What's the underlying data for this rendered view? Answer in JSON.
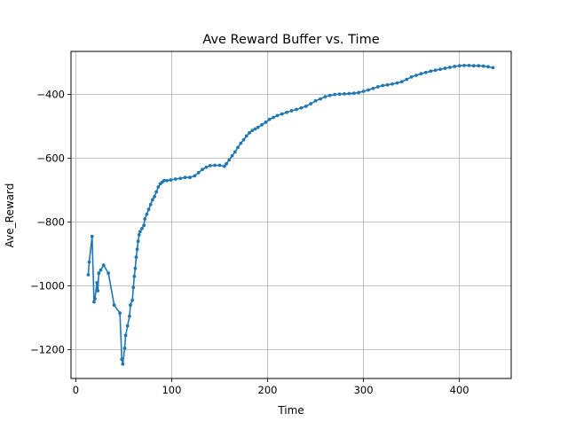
{
  "chart_data": {
    "type": "line",
    "title": "Ave Reward Buffer vs. Time",
    "xlabel": "Time",
    "ylabel": "Ave_Reward",
    "xlim": [
      -5,
      454
    ],
    "ylim": [
      -1290,
      -265
    ],
    "xticks": [
      0,
      100,
      200,
      300,
      400
    ],
    "yticks": [
      -1200,
      -1000,
      -800,
      -600,
      -400
    ],
    "xtick_labels": [
      "0",
      "100",
      "200",
      "300",
      "400"
    ],
    "ytick_labels": [
      "−1200",
      "−1000",
      "−800",
      "−600",
      "−400"
    ],
    "grid": true,
    "series": [
      {
        "color": "#1f77b4",
        "marker": "dot",
        "x": [
          13,
          14,
          17,
          19,
          20,
          22,
          23,
          24,
          26,
          29,
          34,
          40,
          46,
          48,
          49,
          51,
          52,
          54,
          56,
          57,
          59,
          60,
          61,
          62,
          63,
          64,
          65,
          66,
          67,
          69,
          71,
          72,
          74,
          76,
          78,
          80,
          82,
          84,
          86,
          88,
          90,
          92,
          95,
          99,
          104,
          109,
          114,
          119,
          124,
          128,
          132,
          136,
          140,
          145,
          150,
          155,
          157,
          160,
          163,
          166,
          169,
          172,
          175,
          178,
          181,
          184,
          187,
          190,
          194,
          198,
          202,
          206,
          210,
          215,
          220,
          225,
          230,
          235,
          240,
          245,
          250,
          255,
          260,
          265,
          270,
          275,
          280,
          285,
          290,
          295,
          300,
          305,
          310,
          315,
          320,
          325,
          330,
          335,
          340,
          345,
          350,
          355,
          360,
          365,
          370,
          375,
          380,
          385,
          390,
          395,
          400,
          405,
          410,
          415,
          420,
          425,
          430,
          435
        ],
        "values": [
          -965,
          -925,
          -845,
          -1050,
          -1040,
          -990,
          -1015,
          -960,
          -950,
          -935,
          -960,
          -1060,
          -1085,
          -1230,
          -1245,
          -1195,
          -1155,
          -1125,
          -1095,
          -1060,
          -1045,
          -1005,
          -970,
          -945,
          -910,
          -885,
          -860,
          -840,
          -830,
          -820,
          -810,
          -790,
          -775,
          -760,
          -745,
          -730,
          -720,
          -705,
          -690,
          -680,
          -675,
          -670,
          -670,
          -668,
          -665,
          -663,
          -660,
          -660,
          -655,
          -645,
          -635,
          -628,
          -623,
          -622,
          -622,
          -625,
          -617,
          -605,
          -592,
          -580,
          -566,
          -553,
          -542,
          -530,
          -520,
          -513,
          -508,
          -503,
          -495,
          -487,
          -478,
          -472,
          -466,
          -461,
          -456,
          -451,
          -447,
          -442,
          -437,
          -429,
          -420,
          -414,
          -407,
          -403,
          -400,
          -399,
          -398,
          -397,
          -396,
          -394,
          -390,
          -386,
          -381,
          -376,
          -372,
          -370,
          -367,
          -364,
          -360,
          -353,
          -345,
          -340,
          -335,
          -331,
          -327,
          -324,
          -321,
          -318,
          -315,
          -312,
          -310,
          -309,
          -309,
          -310,
          -310,
          -311,
          -313,
          -316
        ]
      }
    ]
  }
}
